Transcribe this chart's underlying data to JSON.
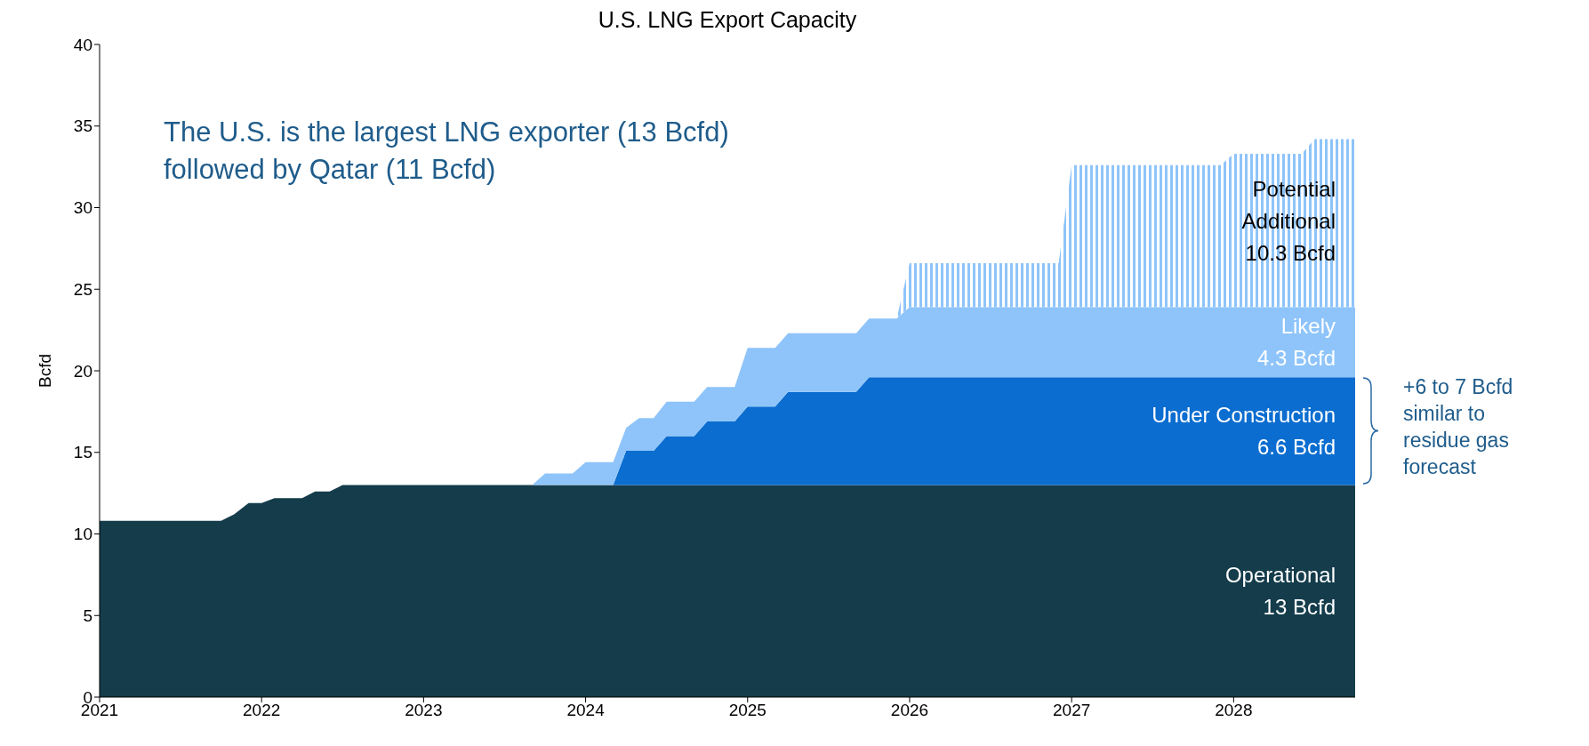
{
  "chart_data": {
    "type": "area",
    "title": "U.S. LNG Export Capacity",
    "ylabel": "Bcfd",
    "stacked": true,
    "x": [
      2021,
      2021.75,
      2021.83,
      2021.92,
      2022,
      2022.08,
      2022.25,
      2022.33,
      2022.42,
      2022.5,
      2023.67,
      2023.75,
      2023.92,
      2024,
      2024.17,
      2024.25,
      2024.33,
      2024.42,
      2024.5,
      2024.67,
      2024.75,
      2024.92,
      2025,
      2025.17,
      2025.25,
      2025.67,
      2025.75,
      2025.92,
      2026,
      2026.92,
      2027,
      2027.92,
      2028,
      2028.42,
      2028.5,
      2028.75
    ],
    "series": [
      {
        "name": "Operational",
        "color": "#143c4b",
        "values": [
          10.8,
          10.8,
          11.2,
          11.9,
          11.9,
          12.2,
          12.2,
          12.6,
          12.6,
          13,
          13,
          13,
          13,
          13,
          13,
          13,
          13,
          13,
          13,
          13,
          13,
          13,
          13,
          13,
          13,
          13,
          13,
          13,
          13,
          13,
          13,
          13,
          13,
          13,
          13,
          13
        ]
      },
      {
        "name": "Under Construction",
        "color": "#0b6dd0",
        "values": [
          0,
          0,
          0,
          0,
          0,
          0,
          0,
          0,
          0,
          0,
          0,
          0,
          0,
          0,
          0,
          2.1,
          2.1,
          2.1,
          3,
          3,
          3.9,
          3.9,
          4.8,
          4.8,
          5.7,
          5.7,
          6.6,
          6.6,
          6.6,
          6.6,
          6.6,
          6.6,
          6.6,
          6.6,
          6.6,
          6.6
        ]
      },
      {
        "name": "Likely",
        "color": "#8ec4fa",
        "values": [
          0,
          0,
          0,
          0,
          0,
          0,
          0,
          0,
          0,
          0,
          0,
          0.7,
          0.7,
          1.4,
          1.4,
          1.4,
          2,
          2,
          2.1,
          2.1,
          2.1,
          2.1,
          3.6,
          3.6,
          3.6,
          3.6,
          3.6,
          3.6,
          4.3,
          4.3,
          4.3,
          4.3,
          4.3,
          4.3,
          4.3,
          4.3
        ]
      },
      {
        "name": "Potential Additional",
        "color": "#8ec4fa",
        "values": [
          0,
          0,
          0,
          0,
          0,
          0,
          0,
          0,
          0,
          0,
          0,
          0,
          0,
          0,
          0,
          0,
          0,
          0,
          0,
          0,
          0,
          0,
          0,
          0,
          0,
          0,
          0,
          0,
          2.7,
          2.7,
          8.7,
          8.7,
          9.4,
          9.4,
          10.3,
          10.3
        ]
      }
    ],
    "xlim": [
      2021,
      2028.75
    ],
    "xticks": [
      2021,
      2022,
      2023,
      2024,
      2025,
      2026,
      2027,
      2028
    ],
    "ylim": [
      0,
      40
    ],
    "yticks": [
      0,
      5,
      10,
      15,
      20,
      25,
      30,
      35,
      40
    ],
    "annotations": [
      "13 Bcfd",
      "6.6 Bcfd",
      "4.3 Bcfd",
      "10.3 Bcfd",
      "The U.S. is the largest LNG exporter (13 Bcfd) followed by Qatar (11 Bcfd)",
      "+6 to 7 Bcfd similar to residue gas forecast"
    ]
  }
}
